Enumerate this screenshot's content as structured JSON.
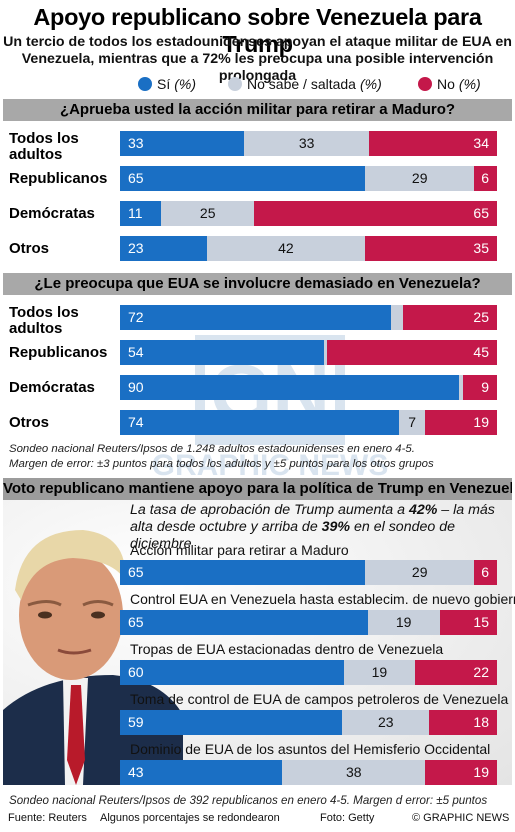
{
  "title": "Apoyo republicano sobre Venezuela para Trump",
  "subtitle": "Un tercio de todos los estadounidenses apoyan el ataque militar de EUA en Venezuela, mientras que a 72% les preocupa una posible intervención prolongada",
  "legend": [
    {
      "label": "Sí",
      "unit": "(%)",
      "color": "#1a6fc4"
    },
    {
      "label": "No sabe / saltada",
      "unit": "(%)",
      "color": "#c8d0dc"
    },
    {
      "label": "No",
      "unit": "(%)",
      "color": "#c4184a"
    }
  ],
  "chart_data": [
    {
      "type": "bar",
      "stacked": true,
      "orientation": "horizontal",
      "title": "¿Aprueba usted la acción militar para retirar a Maduro?",
      "categories": [
        "Todos los adultos",
        "Republicanos",
        "Demócratas",
        "Otros"
      ],
      "series": [
        {
          "name": "Sí",
          "values": [
            33,
            65,
            11,
            23
          ]
        },
        {
          "name": "No sabe / saltada",
          "values": [
            33,
            29,
            25,
            42
          ]
        },
        {
          "name": "No",
          "values": [
            34,
            6,
            65,
            35
          ]
        }
      ]
    },
    {
      "type": "bar",
      "stacked": true,
      "orientation": "horizontal",
      "title": "¿Le preocupa que EUA se involucre demasiado en Venezuela?",
      "categories": [
        "Todos los adultos",
        "Republicanos",
        "Demócratas",
        "Otros"
      ],
      "series": [
        {
          "name": "Sí",
          "values": [
            72,
            54,
            90,
            74
          ]
        },
        {
          "name": "No sabe / saltada",
          "values": [
            3,
            1,
            1,
            7
          ]
        },
        {
          "name": "No",
          "values": [
            25,
            45,
            9,
            19
          ]
        }
      ],
      "labels_hidden": {
        "No sabe / saltada": [
          true,
          true,
          true,
          false
        ]
      }
    },
    {
      "type": "bar",
      "stacked": true,
      "orientation": "horizontal",
      "title": "Voto republicano mantiene apoyo para la política de Trump en Venezuela",
      "categories": [
        "Acción militar para retirar a Maduro",
        "Control EUA en Venezuela hasta establecim. de nuevo gobierno",
        "Tropas de EUA estacionadas dentro de Venezuela",
        "Toma de control de EUA de campos petroleros de Venezuela",
        "Dominio de EUA de los asuntos del Hemisferio Occidental"
      ],
      "series": [
        {
          "name": "Sí",
          "values": [
            65,
            65,
            60,
            59,
            43
          ]
        },
        {
          "name": "No sabe / saltada",
          "values": [
            29,
            19,
            19,
            23,
            38
          ]
        },
        {
          "name": "No",
          "values": [
            6,
            15,
            22,
            18,
            19
          ]
        }
      ]
    }
  ],
  "section1": {
    "labels": [
      [
        "Todos los",
        "adultos"
      ],
      [
        "Republicanos"
      ],
      [
        "Demócratas"
      ],
      [
        "Otros"
      ]
    ]
  },
  "section2": {
    "labels": [
      [
        "Todos los",
        "adultos"
      ],
      [
        "Republicanos"
      ],
      [
        "Demócratas"
      ],
      [
        "Otros"
      ]
    ],
    "note_line1": "Sondeo nacional Reuters/Ipsos de 1.248 adultos estadounidenses en enero 4-5.",
    "note_line2": "Margen de error: ±3 puntos para todos los adultos y ±5 puntos para los otros grupos"
  },
  "section3": {
    "intro_a": "La tasa de aprobación de Trump aumenta a ",
    "intro_b": "42%",
    "intro_c": " – la más alta desde octubre y arriba de ",
    "intro_d": "39%",
    "intro_e": " en el sondeo de diciembre",
    "note": "Sondeo nacional Reuters/Ipsos de 392 republicanos en enero 4-5. Margen d error: ±5 puntos"
  },
  "footer": {
    "source": "Fuente: Reuters",
    "rounding": "Algunos porcentajes se redondearon",
    "photo": "Foto: Getty",
    "credit": "© GRAPHIC NEWS"
  }
}
